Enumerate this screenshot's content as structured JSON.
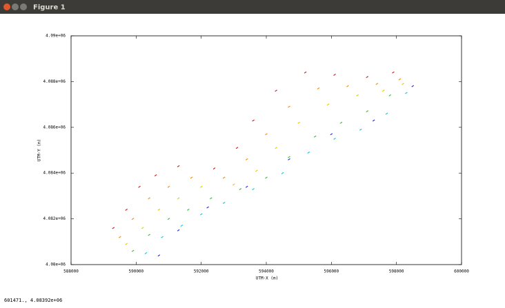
{
  "window": {
    "title": "Figure 1"
  },
  "chart_data": {
    "type": "scatter",
    "xlabel": "UTM-X (m)",
    "ylabel": "UTM-Y (m)",
    "xlim": [
      588000,
      600000
    ],
    "ylim": [
      4080000,
      4090000
    ],
    "xticks": [
      588000,
      590000,
      592000,
      594000,
      596000,
      598000,
      600000
    ],
    "yticks": [
      {
        "value": 4080000,
        "label": "4.08e+06"
      },
      {
        "value": 4082000,
        "label": "4.082e+06"
      },
      {
        "value": 4084000,
        "label": "4.084e+06"
      },
      {
        "value": 4086000,
        "label": "4.086e+06"
      },
      {
        "value": 4088000,
        "label": "4.088e+06"
      },
      {
        "value": 4090000,
        "label": "4.09e+06"
      }
    ],
    "series": [
      {
        "color": "#d62020",
        "x": [
          589300,
          589700,
          590100,
          590600,
          591300,
          592400,
          593100,
          593600,
          594300,
          595200,
          596100,
          597100,
          597900
        ],
        "y": [
          4081600,
          4082400,
          4083400,
          4083900,
          4084300,
          4084200,
          4085100,
          4086300,
          4087600,
          4088400,
          4088300,
          4088200,
          4088400
        ]
      },
      {
        "color": "#ff8c00",
        "x": [
          589500,
          589900,
          590400,
          591000,
          591700,
          592700,
          593400,
          594000,
          594700,
          595600,
          596500,
          597400,
          598100
        ],
        "y": [
          4081200,
          4082000,
          4082900,
          4083400,
          4083800,
          4083800,
          4084600,
          4085700,
          4086900,
          4087700,
          4087800,
          4087900,
          4088100
        ]
      },
      {
        "color": "#e0d000",
        "x": [
          589700,
          590200,
          590700,
          591300,
          592000,
          593000,
          593700,
          594300,
          595000,
          595900,
          596800,
          597600,
          598200
        ],
        "y": [
          4080900,
          4081600,
          4082400,
          4082900,
          4083400,
          4083500,
          4084100,
          4085100,
          4086200,
          4087000,
          4087400,
          4087600,
          4087900
        ]
      },
      {
        "color": "#40c040",
        "x": [
          589900,
          590400,
          591000,
          591600,
          592300,
          593200,
          594000,
          594700,
          595500,
          596300,
          597100,
          597800
        ],
        "y": [
          4080600,
          4081300,
          4082000,
          4082400,
          4082900,
          4083300,
          4083800,
          4084700,
          4085600,
          4086200,
          4086700,
          4087400
        ]
      },
      {
        "color": "#20c8d0",
        "x": [
          590300,
          590800,
          591400,
          592000,
          592700,
          593600,
          594500,
          595300,
          596100,
          596900,
          597700,
          598300
        ],
        "y": [
          4080500,
          4081200,
          4081700,
          4082200,
          4082700,
          4083300,
          4084000,
          4084900,
          4085500,
          4085900,
          4086600,
          4087500
        ]
      },
      {
        "color": "#3030e0",
        "x": [
          590700,
          591300,
          592200,
          593400,
          594700,
          596000,
          597300,
          598500
        ],
        "y": [
          4080400,
          4081500,
          4082500,
          4083400,
          4084600,
          4085700,
          4086300,
          4087800
        ]
      }
    ]
  },
  "status_bar": {
    "text": "601471., 4.08392e+06"
  }
}
